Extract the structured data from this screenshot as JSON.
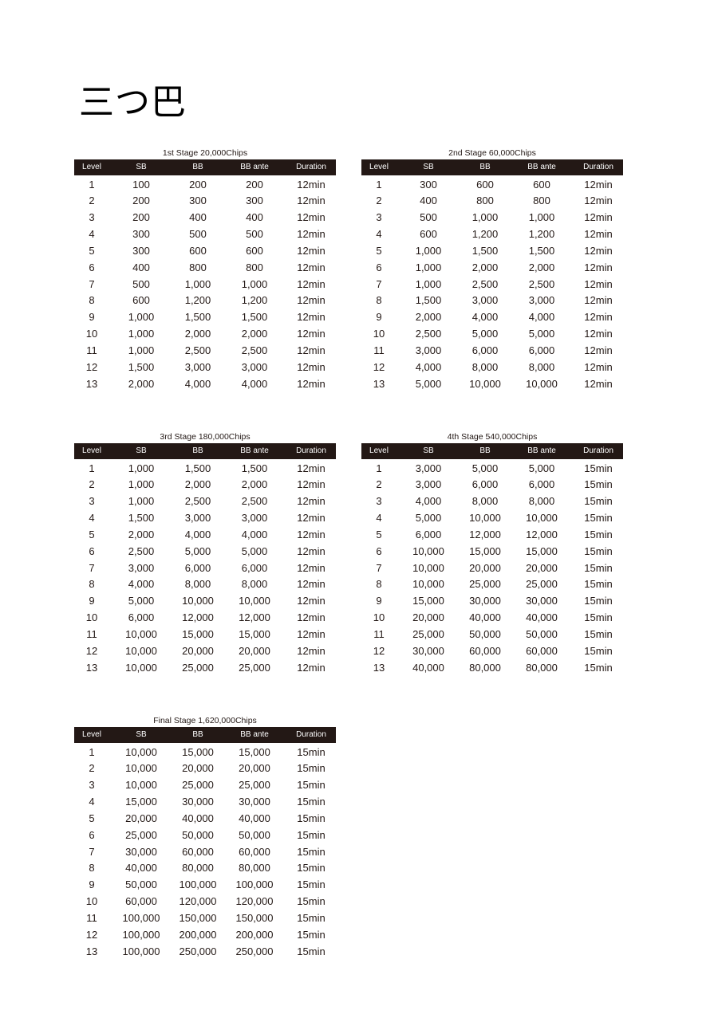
{
  "title": "三つ巴",
  "columns": [
    "Level",
    "SB",
    "BB",
    "BB ante",
    "Duration"
  ],
  "stages": [
    {
      "title": "1st Stage  20,000Chips",
      "rows": [
        [
          "1",
          "100",
          "200",
          "200",
          "12min"
        ],
        [
          "2",
          "200",
          "300",
          "300",
          "12min"
        ],
        [
          "3",
          "200",
          "400",
          "400",
          "12min"
        ],
        [
          "4",
          "300",
          "500",
          "500",
          "12min"
        ],
        [
          "5",
          "300",
          "600",
          "600",
          "12min"
        ],
        [
          "6",
          "400",
          "800",
          "800",
          "12min"
        ],
        [
          "7",
          "500",
          "1,000",
          "1,000",
          "12min"
        ],
        [
          "8",
          "600",
          "1,200",
          "1,200",
          "12min"
        ],
        [
          "9",
          "1,000",
          "1,500",
          "1,500",
          "12min"
        ],
        [
          "10",
          "1,000",
          "2,000",
          "2,000",
          "12min"
        ],
        [
          "11",
          "1,000",
          "2,500",
          "2,500",
          "12min"
        ],
        [
          "12",
          "1,500",
          "3,000",
          "3,000",
          "12min"
        ],
        [
          "13",
          "2,000",
          "4,000",
          "4,000",
          "12min"
        ]
      ]
    },
    {
      "title": "2nd Stage   60,000Chips",
      "rows": [
        [
          "1",
          "300",
          "600",
          "600",
          "12min"
        ],
        [
          "2",
          "400",
          "800",
          "800",
          "12min"
        ],
        [
          "3",
          "500",
          "1,000",
          "1,000",
          "12min"
        ],
        [
          "4",
          "600",
          "1,200",
          "1,200",
          "12min"
        ],
        [
          "5",
          "1,000",
          "1,500",
          "1,500",
          "12min"
        ],
        [
          "6",
          "1,000",
          "2,000",
          "2,000",
          "12min"
        ],
        [
          "7",
          "1,000",
          "2,500",
          "2,500",
          "12min"
        ],
        [
          "8",
          "1,500",
          "3,000",
          "3,000",
          "12min"
        ],
        [
          "9",
          "2,000",
          "4,000",
          "4,000",
          "12min"
        ],
        [
          "10",
          "2,500",
          "5,000",
          "5,000",
          "12min"
        ],
        [
          "11",
          "3,000",
          "6,000",
          "6,000",
          "12min"
        ],
        [
          "12",
          "4,000",
          "8,000",
          "8,000",
          "12min"
        ],
        [
          "13",
          "5,000",
          "10,000",
          "10,000",
          "12min"
        ]
      ]
    },
    {
      "title": "3rd Stage   180,000Chips",
      "rows": [
        [
          "1",
          "1,000",
          "1,500",
          "1,500",
          "12min"
        ],
        [
          "2",
          "1,000",
          "2,000",
          "2,000",
          "12min"
        ],
        [
          "3",
          "1,000",
          "2,500",
          "2,500",
          "12min"
        ],
        [
          "4",
          "1,500",
          "3,000",
          "3,000",
          "12min"
        ],
        [
          "5",
          "2,000",
          "4,000",
          "4,000",
          "12min"
        ],
        [
          "6",
          "2,500",
          "5,000",
          "5,000",
          "12min"
        ],
        [
          "7",
          "3,000",
          "6,000",
          "6,000",
          "12min"
        ],
        [
          "8",
          "4,000",
          "8,000",
          "8,000",
          "12min"
        ],
        [
          "9",
          "5,000",
          "10,000",
          "10,000",
          "12min"
        ],
        [
          "10",
          "6,000",
          "12,000",
          "12,000",
          "12min"
        ],
        [
          "11",
          "10,000",
          "15,000",
          "15,000",
          "12min"
        ],
        [
          "12",
          "10,000",
          "20,000",
          "20,000",
          "12min"
        ],
        [
          "13",
          "10,000",
          "25,000",
          "25,000",
          "12min"
        ]
      ]
    },
    {
      "title": "4th Stage   540,000Chips",
      "rows": [
        [
          "1",
          "3,000",
          "5,000",
          "5,000",
          "15min"
        ],
        [
          "2",
          "3,000",
          "6,000",
          "6,000",
          "15min"
        ],
        [
          "3",
          "4,000",
          "8,000",
          "8,000",
          "15min"
        ],
        [
          "4",
          "5,000",
          "10,000",
          "10,000",
          "15min"
        ],
        [
          "5",
          "6,000",
          "12,000",
          "12,000",
          "15min"
        ],
        [
          "6",
          "10,000",
          "15,000",
          "15,000",
          "15min"
        ],
        [
          "7",
          "10,000",
          "20,000",
          "20,000",
          "15min"
        ],
        [
          "8",
          "10,000",
          "25,000",
          "25,000",
          "15min"
        ],
        [
          "9",
          "15,000",
          "30,000",
          "30,000",
          "15min"
        ],
        [
          "10",
          "20,000",
          "40,000",
          "40,000",
          "15min"
        ],
        [
          "11",
          "25,000",
          "50,000",
          "50,000",
          "15min"
        ],
        [
          "12",
          "30,000",
          "60,000",
          "60,000",
          "15min"
        ],
        [
          "13",
          "40,000",
          "80,000",
          "80,000",
          "15min"
        ]
      ]
    },
    {
      "title": "Final Stage   1,620,000Chips",
      "rows": [
        [
          "1",
          "10,000",
          "15,000",
          "15,000",
          "15min"
        ],
        [
          "2",
          "10,000",
          "20,000",
          "20,000",
          "15min"
        ],
        [
          "3",
          "10,000",
          "25,000",
          "25,000",
          "15min"
        ],
        [
          "4",
          "15,000",
          "30,000",
          "30,000",
          "15min"
        ],
        [
          "5",
          "20,000",
          "40,000",
          "40,000",
          "15min"
        ],
        [
          "6",
          "25,000",
          "50,000",
          "50,000",
          "15min"
        ],
        [
          "7",
          "30,000",
          "60,000",
          "60,000",
          "15min"
        ],
        [
          "8",
          "40,000",
          "80,000",
          "80,000",
          "15min"
        ],
        [
          "9",
          "50,000",
          "100,000",
          "100,000",
          "15min"
        ],
        [
          "10",
          "60,000",
          "120,000",
          "120,000",
          "15min"
        ],
        [
          "11",
          "100,000",
          "150,000",
          "150,000",
          "15min"
        ],
        [
          "12",
          "100,000",
          "200,000",
          "200,000",
          "15min"
        ],
        [
          "13",
          "100,000",
          "250,000",
          "250,000",
          "15min"
        ]
      ]
    }
  ],
  "colors": {
    "header_bg": "#231815",
    "header_text": "#ffffff",
    "text": "#231815"
  }
}
